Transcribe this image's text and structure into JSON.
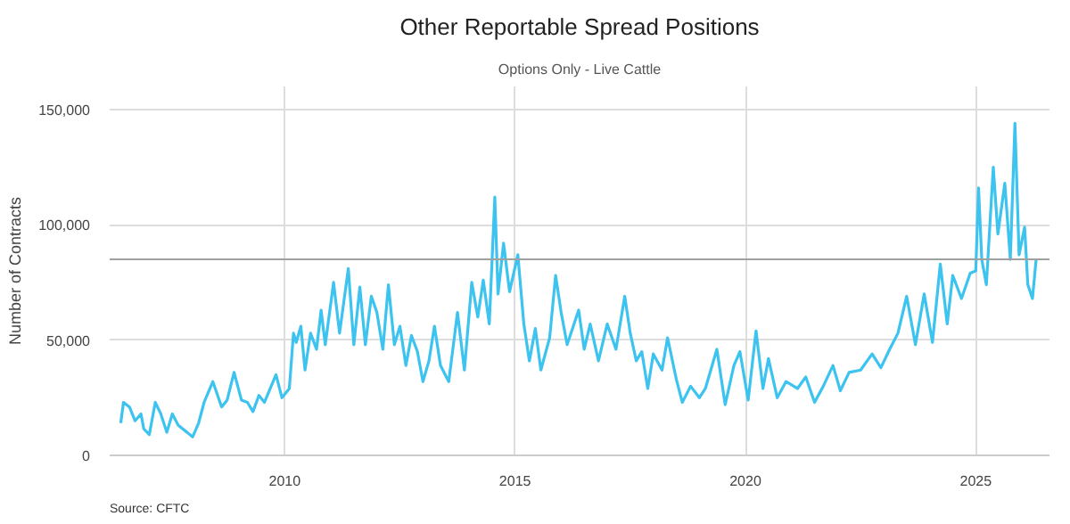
{
  "chart_data": {
    "type": "line",
    "title": "Other Reportable Spread Positions",
    "subtitle": "Options Only - Live Cattle",
    "ylabel": "Number of Contracts",
    "annotations": [
      "Source: CFTC"
    ],
    "xlim": [
      2006.2,
      2026.6
    ],
    "xticks": [
      2010,
      2015,
      2020,
      2025
    ],
    "ylim": [
      0,
      160000
    ],
    "yticks": [
      {
        "value": 0,
        "label": "0"
      },
      {
        "value": 50000,
        "label": "50,000"
      },
      {
        "value": 100000,
        "label": "100,000"
      },
      {
        "value": 150000,
        "label": "150,000"
      }
    ],
    "grid": true,
    "line_style": "solid",
    "ref_lines": [
      {
        "axis": "y",
        "value": 85000,
        "label": null,
        "color": "#a0a0a0"
      }
    ],
    "series": [
      {
        "color": "#3cc3f0",
        "x": [
          2006.44,
          2006.5,
          2006.63,
          2006.75,
          2006.88,
          2006.94,
          2007.06,
          2007.19,
          2007.31,
          2007.44,
          2007.56,
          2007.69,
          2007.88,
          2008.0,
          2008.13,
          2008.25,
          2008.44,
          2008.63,
          2008.75,
          2008.9,
          2009.06,
          2009.19,
          2009.31,
          2009.44,
          2009.56,
          2009.81,
          2009.94,
          2010.1,
          2010.19,
          2010.25,
          2010.35,
          2010.44,
          2010.56,
          2010.69,
          2010.79,
          2010.88,
          2011.06,
          2011.19,
          2011.38,
          2011.5,
          2011.63,
          2011.75,
          2011.88,
          2012.0,
          2012.13,
          2012.25,
          2012.38,
          2012.5,
          2012.63,
          2012.75,
          2012.88,
          2013.0,
          2013.13,
          2013.25,
          2013.38,
          2013.56,
          2013.75,
          2013.9,
          2014.06,
          2014.19,
          2014.31,
          2014.44,
          2014.56,
          2014.63,
          2014.75,
          2014.88,
          2015.06,
          2015.19,
          2015.31,
          2015.44,
          2015.56,
          2015.75,
          2015.88,
          2016.0,
          2016.13,
          2016.38,
          2016.5,
          2016.63,
          2016.81,
          2017.0,
          2017.19,
          2017.38,
          2017.5,
          2017.63,
          2017.75,
          2017.88,
          2018.0,
          2018.19,
          2018.31,
          2018.5,
          2018.63,
          2018.81,
          2019.0,
          2019.13,
          2019.38,
          2019.56,
          2019.75,
          2019.88,
          2020.06,
          2020.23,
          2020.38,
          2020.5,
          2020.69,
          2020.88,
          2021.13,
          2021.31,
          2021.5,
          2021.69,
          2021.9,
          2022.06,
          2022.25,
          2022.5,
          2022.75,
          2022.94,
          2023.13,
          2023.31,
          2023.5,
          2023.69,
          2023.88,
          2024.06,
          2024.23,
          2024.38,
          2024.5,
          2024.69,
          2024.88,
          2025.0,
          2025.06,
          2025.13,
          2025.23,
          2025.38,
          2025.48,
          2025.63,
          2025.75,
          2025.85,
          2025.94,
          2026.06,
          2026.13,
          2026.23,
          2026.31
        ],
        "values": [
          14000,
          23000,
          21000,
          15000,
          18000,
          11500,
          9000,
          23000,
          18000,
          10000,
          18000,
          13000,
          10000,
          8000,
          14000,
          23000,
          32000,
          21000,
          24000,
          36000,
          24000,
          23000,
          19000,
          26000,
          23000,
          35000,
          25000,
          29000,
          53000,
          49000,
          56000,
          37000,
          53000,
          46000,
          63000,
          48000,
          75000,
          53000,
          81000,
          48000,
          73000,
          48000,
          69000,
          62000,
          46000,
          74000,
          48000,
          56000,
          39000,
          52000,
          45000,
          32000,
          41000,
          56000,
          39000,
          32000,
          62000,
          37000,
          75000,
          60000,
          76000,
          57000,
          112000,
          70000,
          92000,
          71000,
          87000,
          57000,
          41000,
          55000,
          37000,
          51000,
          78000,
          62000,
          48000,
          63000,
          46000,
          57000,
          41000,
          57000,
          46000,
          69000,
          53000,
          41000,
          45000,
          29000,
          44000,
          37000,
          51000,
          33000,
          23000,
          30000,
          25000,
          29000,
          46000,
          22000,
          39000,
          45000,
          24000,
          54000,
          29000,
          42000,
          25000,
          32000,
          29000,
          34000,
          23000,
          30000,
          39000,
          28000,
          36000,
          37000,
          44000,
          38000,
          46000,
          53000,
          69000,
          48000,
          70000,
          49000,
          83000,
          57000,
          78000,
          68000,
          79000,
          80000,
          116000,
          85000,
          74000,
          125000,
          96000,
          118000,
          85000,
          144000,
          87000,
          99000,
          74000,
          68000,
          85000
        ]
      }
    ]
  }
}
